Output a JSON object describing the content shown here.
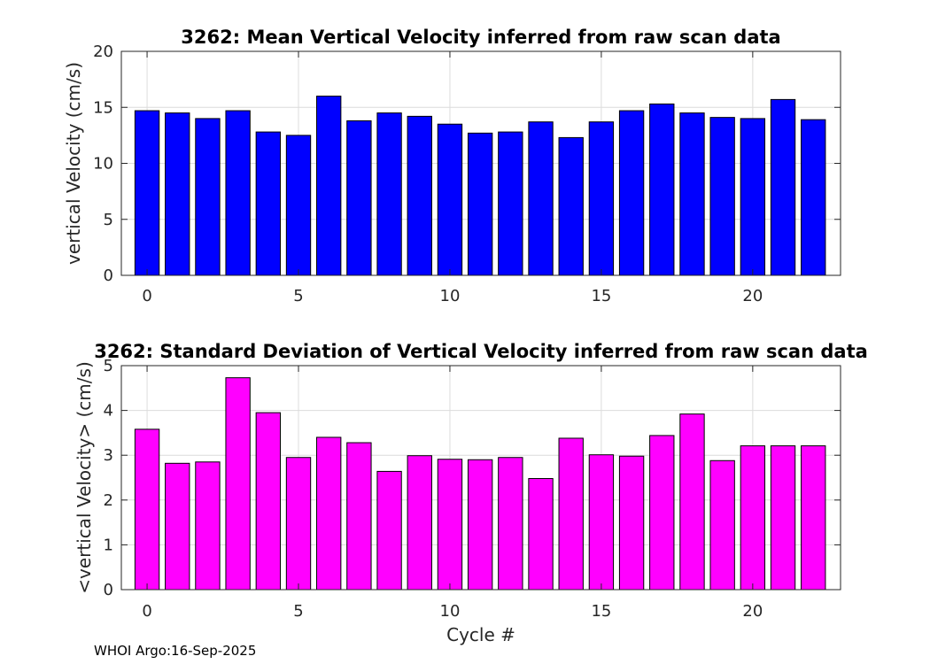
{
  "chart_data": [
    {
      "type": "bar",
      "title": "3262: Mean Vertical Velocity inferred from raw scan data",
      "xlabel": "",
      "ylabel": "vertical Velocity (cm/s)",
      "x": [
        0,
        1,
        2,
        3,
        4,
        5,
        6,
        7,
        8,
        9,
        10,
        11,
        12,
        13,
        14,
        15,
        16,
        17,
        18,
        19,
        20,
        21,
        22
      ],
      "values": [
        14.7,
        14.5,
        14.0,
        14.7,
        12.8,
        12.5,
        16.0,
        13.8,
        14.5,
        14.2,
        13.5,
        12.7,
        12.8,
        13.7,
        12.3,
        13.7,
        14.7,
        15.3,
        14.5,
        14.1,
        14.0,
        15.7,
        13.9
      ],
      "xlim": [
        -0.85,
        22.9
      ],
      "ylim": [
        0,
        20
      ],
      "xticks": [
        0,
        5,
        10,
        15,
        20
      ],
      "yticks": [
        0,
        5,
        10,
        15,
        20
      ],
      "grid": true,
      "color": "#0000ff"
    },
    {
      "type": "bar",
      "title": "3262: Standard Deviation of Vertical Velocity inferred from raw scan data",
      "xlabel": "Cycle #",
      "ylabel": "<vertical Velocity> (cm/s)",
      "x": [
        0,
        1,
        2,
        3,
        4,
        5,
        6,
        7,
        8,
        9,
        10,
        11,
        12,
        13,
        14,
        15,
        16,
        17,
        18,
        19,
        20,
        21,
        22
      ],
      "values": [
        3.58,
        2.82,
        2.85,
        4.73,
        3.95,
        2.95,
        3.4,
        3.28,
        2.64,
        2.99,
        2.91,
        2.9,
        2.95,
        2.48,
        3.38,
        3.01,
        2.98,
        3.44,
        3.92,
        2.88,
        3.21,
        3.21,
        3.21
      ],
      "xlim": [
        -0.85,
        22.9
      ],
      "ylim": [
        0,
        5
      ],
      "xticks": [
        0,
        5,
        10,
        15,
        20
      ],
      "yticks": [
        0,
        1,
        2,
        3,
        4,
        5
      ],
      "grid": true,
      "color": "#ff00ff"
    }
  ],
  "footer": "WHOI Argo:16-Sep-2025"
}
